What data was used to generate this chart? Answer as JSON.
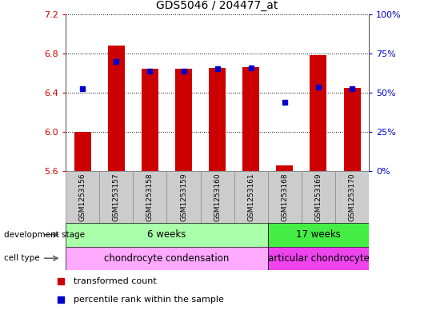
{
  "title": "GDS5046 / 204477_at",
  "samples": [
    "GSM1253156",
    "GSM1253157",
    "GSM1253158",
    "GSM1253159",
    "GSM1253160",
    "GSM1253161",
    "GSM1253168",
    "GSM1253169",
    "GSM1253170"
  ],
  "bar_bottom": 5.6,
  "bar_tops": [
    6.0,
    6.88,
    6.64,
    6.64,
    6.65,
    6.66,
    5.66,
    6.78,
    6.45
  ],
  "percentile_values": [
    6.44,
    6.72,
    6.62,
    6.62,
    6.64,
    6.65,
    6.3,
    6.46,
    6.44
  ],
  "ylim_left": [
    5.6,
    7.2
  ],
  "ylim_right": [
    0,
    100
  ],
  "yticks_left": [
    5.6,
    6.0,
    6.4,
    6.8,
    7.2
  ],
  "yticks_right": [
    0,
    25,
    50,
    75,
    100
  ],
  "ytick_labels_right": [
    "0%",
    "25%",
    "50%",
    "75%",
    "100%"
  ],
  "bar_color": "#cc0000",
  "blue_marker_color": "#0000cc",
  "dev_stage": {
    "group1_label": "6 weeks",
    "group1_n": 6,
    "group2_label": "17 weeks",
    "group2_n": 3,
    "color1": "#aaffaa",
    "color2": "#44ee44"
  },
  "cell_type": {
    "group1_label": "chondrocyte condensation",
    "group1_n": 6,
    "group2_label": "articular chondrocyte",
    "group2_n": 3,
    "color1": "#ffaaff",
    "color2": "#ee44ee"
  },
  "row_label_dev": "development stage",
  "row_label_cell": "cell type",
  "legend_red": "transformed count",
  "legend_blue": "percentile rank within the sample",
  "tick_color_left": "#cc0000",
  "tick_color_right": "#0000cc",
  "bar_width": 0.5,
  "xtick_box_color": "#cccccc",
  "xtick_box_edge": "#888888"
}
